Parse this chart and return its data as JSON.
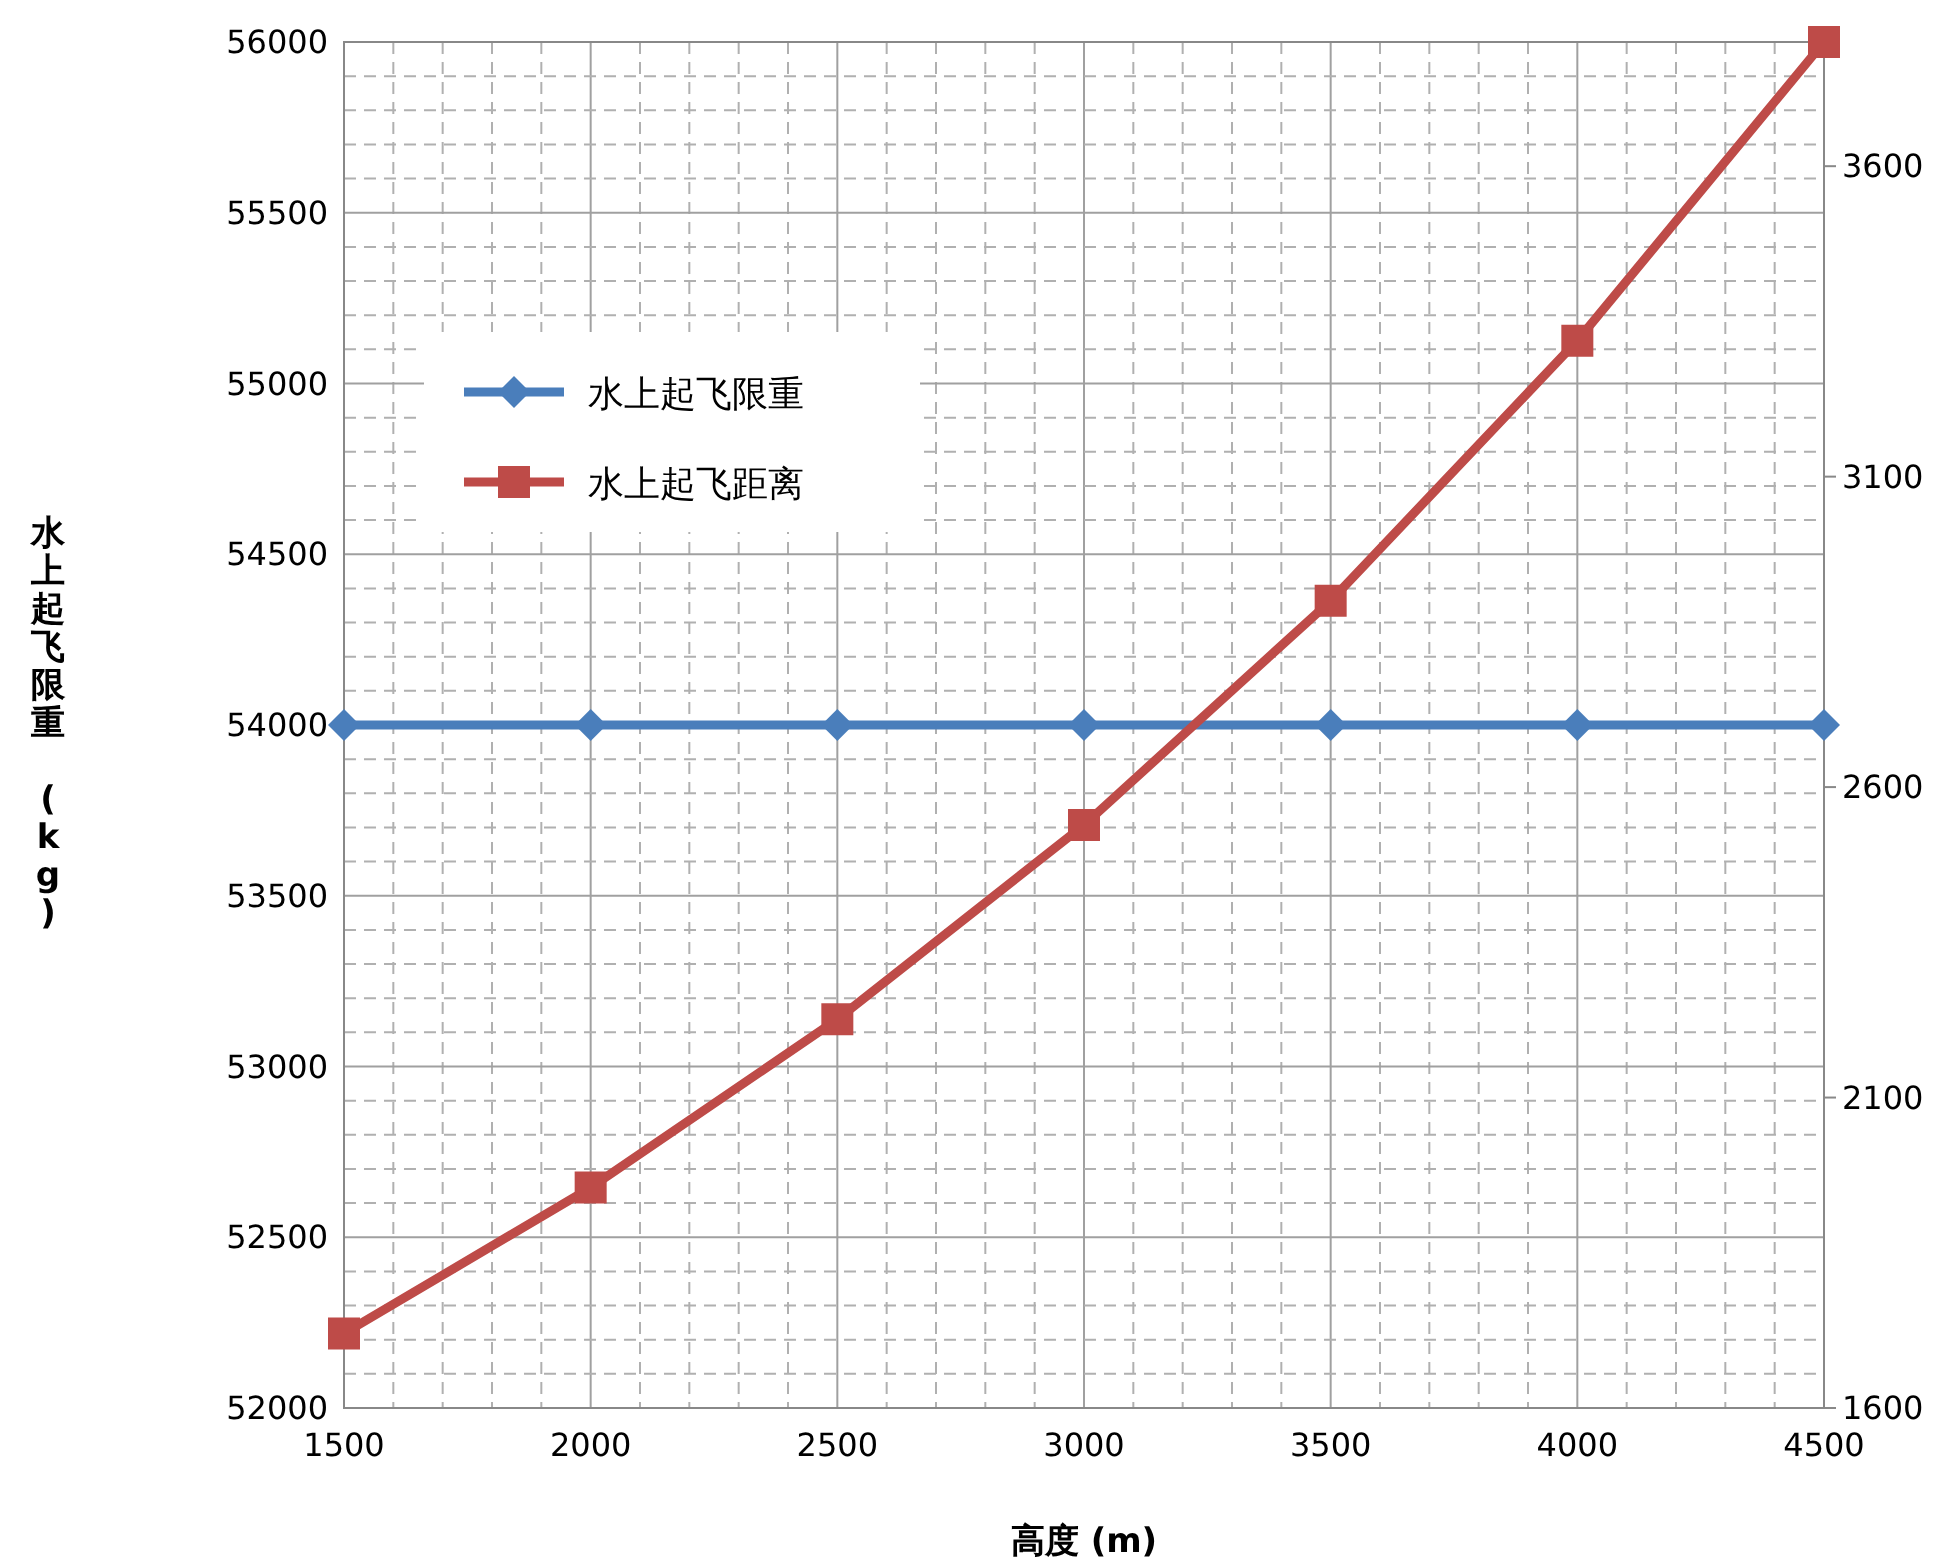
{
  "chart_data": {
    "type": "line",
    "xlabel": "高度 (m)",
    "ylabel": "水上起飞限重 (kg)",
    "x": [
      1500,
      2000,
      2500,
      3000,
      3500,
      4000,
      4500
    ],
    "series": [
      {
        "name": "水上起飞限重",
        "color": "#4a7ebb",
        "marker": "diamond",
        "values": [
          54000,
          54000,
          54000,
          54000,
          54000,
          54000,
          54000
        ]
      },
      {
        "name": "水上起飞距离",
        "color": "#be4b48",
        "marker": "square",
        "axis": "y2",
        "values": [
          1720,
          1955,
          2226,
          2539,
          2900,
          3319,
          3800
        ]
      }
    ],
    "xlim": [
      1500,
      4500
    ],
    "xticks": [
      1500,
      2000,
      2500,
      3000,
      3500,
      4000,
      4500
    ],
    "ylim": [
      52000,
      56000
    ],
    "yticks": [
      52000,
      52500,
      53000,
      53500,
      54000,
      54500,
      55000,
      55500,
      56000
    ],
    "y2lim": [
      1600,
      3800
    ],
    "y2ticks": [
      1600,
      2100,
      2600,
      3100,
      3600
    ],
    "grid": true,
    "legend": "top left"
  }
}
